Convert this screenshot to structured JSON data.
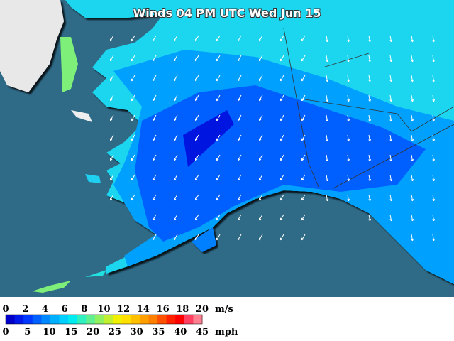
{
  "title": "Winds 04 PM UTC Wed Jun 15",
  "legend": {
    "ms_labels": [
      0,
      2,
      4,
      6,
      8,
      10,
      12,
      14,
      16,
      18,
      20
    ],
    "ms_unit": "m/s",
    "mph_labels": [
      0,
      5,
      10,
      15,
      20,
      25,
      30,
      35,
      40,
      45
    ],
    "mph_unit": "mph",
    "colors": [
      "#0000c8",
      "#0018e8",
      "#0038ff",
      "#0060ff",
      "#0088ff",
      "#00b0ff",
      "#00d0ff",
      "#00ecf0",
      "#30f0c0",
      "#60f090",
      "#90f060",
      "#c0f030",
      "#f0f000",
      "#ffe000",
      "#ffc000",
      "#ffa000",
      "#ff8000",
      "#ff5000",
      "#ff2000",
      "#ff0000",
      "#ff4060",
      "#ff8090"
    ]
  }
}
